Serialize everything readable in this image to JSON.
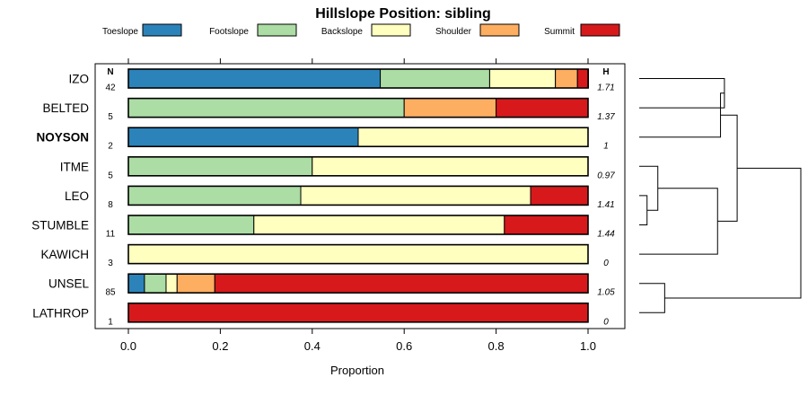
{
  "chart_data": {
    "type": "bar",
    "orientation": "horizontal",
    "stacked": true,
    "title": "Hillslope Position: sibling",
    "xlabel": "Proportion",
    "ylabel": "",
    "xlim": [
      0,
      1
    ],
    "x_ticks": [
      "0.0",
      "0.2",
      "0.4",
      "0.6",
      "0.8",
      "1.0"
    ],
    "grid": false,
    "legend_position": "top",
    "n_header": "N",
    "h_header": "H",
    "series": [
      {
        "name": "Toeslope",
        "color": "#2B83BA"
      },
      {
        "name": "Footslope",
        "color": "#ABDDA4"
      },
      {
        "name": "Backslope",
        "color": "#FFFFBF"
      },
      {
        "name": "Shoulder",
        "color": "#FDAE61"
      },
      {
        "name": "Summit",
        "color": "#D7191C"
      }
    ],
    "rows": [
      {
        "label": "IZO",
        "bold": false,
        "n": "42",
        "h": "1.71",
        "values": [
          0.548,
          0.238,
          0.143,
          0.048,
          0.024
        ]
      },
      {
        "label": "BELTED",
        "bold": false,
        "n": "5",
        "h": "1.37",
        "values": [
          0,
          0.6,
          0,
          0.2,
          0.2
        ]
      },
      {
        "label": "NOYSON",
        "bold": true,
        "n": "2",
        "h": "1",
        "values": [
          0.5,
          0,
          0.5,
          0,
          0
        ]
      },
      {
        "label": "ITME",
        "bold": false,
        "n": "5",
        "h": "0.97",
        "values": [
          0,
          0.4,
          0.6,
          0,
          0
        ]
      },
      {
        "label": "LEO",
        "bold": false,
        "n": "8",
        "h": "1.41",
        "values": [
          0,
          0.375,
          0.5,
          0,
          0.125
        ]
      },
      {
        "label": "STUMBLE",
        "bold": false,
        "n": "11",
        "h": "1.44",
        "values": [
          0,
          0.273,
          0.545,
          0,
          0.182
        ]
      },
      {
        "label": "KAWICH",
        "bold": false,
        "n": "3",
        "h": "0",
        "values": [
          0,
          0,
          1,
          0,
          0
        ]
      },
      {
        "label": "UNSEL",
        "bold": false,
        "n": "85",
        "h": "1.05",
        "values": [
          0.035,
          0.047,
          0.024,
          0.082,
          0.812
        ]
      },
      {
        "label": "LATHROP",
        "bold": false,
        "n": "1",
        "h": "0",
        "values": [
          0,
          0,
          0,
          0,
          1
        ]
      }
    ],
    "dendrogram": {
      "merges": [
        {
          "a": 4,
          "b": 5,
          "height": 0.08
        },
        {
          "a": "m0",
          "b": 3,
          "height": 0.19
        },
        {
          "a": "m1",
          "b": 6,
          "height": 0.8
        },
        {
          "a": 0,
          "b": 1,
          "height": 0.87
        },
        {
          "a": "m3",
          "b": 2,
          "height": 0.83
        },
        {
          "a": 7,
          "b": 8,
          "height": 0.26
        },
        {
          "a": "m4",
          "b": "m2",
          "height": 1.0
        },
        {
          "a": "m6",
          "b": "m5",
          "height": 1.65
        }
      ]
    }
  }
}
